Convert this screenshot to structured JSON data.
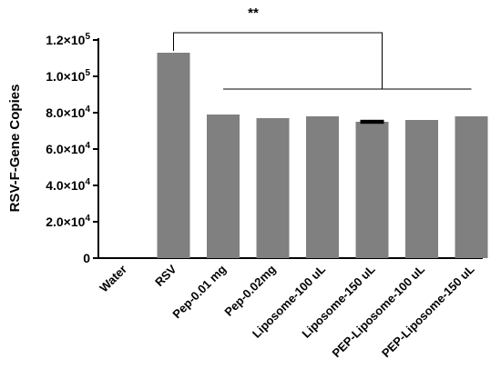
{
  "chart_data": {
    "type": "bar",
    "ylabel": "RSV-F-Gene  Copies",
    "xlabel": "",
    "categories": [
      "Water",
      "RSV",
      "Pep-0.01 mg",
      "Pep-0.02mg",
      "Liposome-100 uL",
      "Liposome-150 uL",
      "PEP-Liposome-100 uL",
      "PEP-Liposome-150 uL"
    ],
    "values": [
      0,
      113000,
      79000,
      77000,
      78000,
      75000,
      76000,
      78000
    ],
    "error": [
      0,
      0,
      0,
      0,
      0,
      600,
      0,
      0
    ],
    "ylim": [
      0,
      120000
    ],
    "yticks": [
      {
        "value": 0,
        "mantissa": "0",
        "exp": ""
      },
      {
        "value": 20000,
        "mantissa": "2.0×10",
        "exp": "4"
      },
      {
        "value": 40000,
        "mantissa": "4.0×10",
        "exp": "4"
      },
      {
        "value": 60000,
        "mantissa": "6.0×10",
        "exp": "4"
      },
      {
        "value": 80000,
        "mantissa": "8.0×10",
        "exp": "4"
      },
      {
        "value": 100000,
        "mantissa": "1.0×10",
        "exp": "5"
      },
      {
        "value": 120000,
        "mantissa": "1.2×10",
        "exp": "5"
      }
    ],
    "bar_color": "#808080",
    "grid": false,
    "annotation": {
      "text": "**",
      "bracket_from_category": "RSV",
      "bracket_to_category": "Liposome-150 uL",
      "comparison_group": [
        "Pep-0.01 mg",
        "PEP-Liposome-150 uL"
      ]
    }
  }
}
